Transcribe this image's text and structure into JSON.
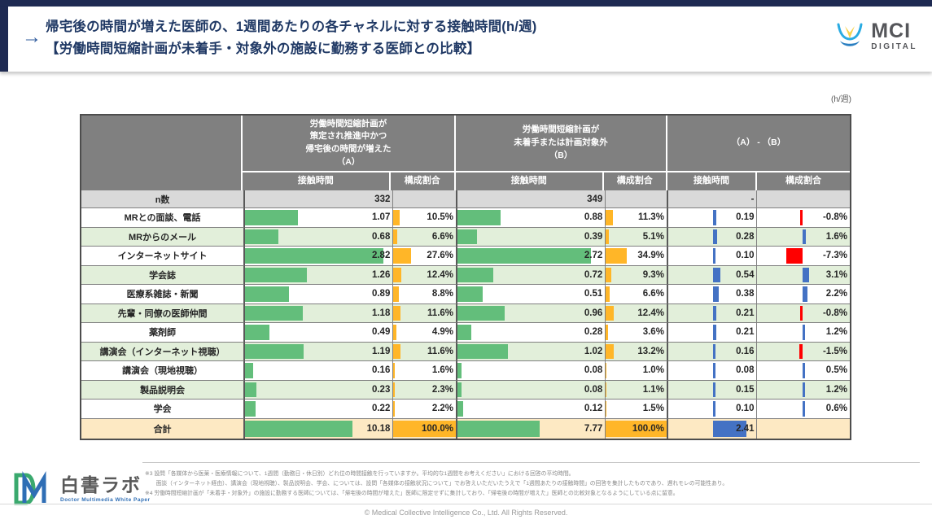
{
  "header": {
    "arrow": "→",
    "title_line1": "帰宅後の時間が増えた医師の、1週間あたりの各チャネルに対する接触時間(h/週)",
    "title_line2": "【労働時間短縮計画が未着手・対象外の施設に勤務する医師との比較】",
    "logo_text": "MCI",
    "logo_subtext": "DIGITAL"
  },
  "table": {
    "unit_label": "(h/週)",
    "col_groups": [
      {
        "label": "労働時間短縮計画が\n策定され推進中かつ\n帰宅後の時間が増えた\n（A）"
      },
      {
        "label": "労働時間短縮計画が\n未着手または計画対象外\n（B）"
      },
      {
        "label": "（A） - （B）"
      }
    ],
    "sub_headers": [
      "接触時間",
      "構成割合"
    ],
    "n_row": {
      "label": "n数",
      "a_n": "332",
      "b_n": "349",
      "diff_n": "-"
    },
    "rows": [
      {
        "label": "MRとの面談、電話",
        "a": {
          "t": "1.07",
          "tv": 1.07,
          "s": "10.5%",
          "sv": 10.5
        },
        "b": {
          "t": "0.88",
          "tv": 0.88,
          "s": "11.3%",
          "sv": 11.3
        },
        "d": {
          "t": "0.19",
          "tv": 0.19,
          "s": "-0.8%",
          "sv": -0.8
        }
      },
      {
        "label": "MRからのメール",
        "a": {
          "t": "0.68",
          "tv": 0.68,
          "s": "6.6%",
          "sv": 6.6
        },
        "b": {
          "t": "0.39",
          "tv": 0.39,
          "s": "5.1%",
          "sv": 5.1
        },
        "d": {
          "t": "0.28",
          "tv": 0.28,
          "s": "1.6%",
          "sv": 1.6
        }
      },
      {
        "label": "インターネットサイト",
        "a": {
          "t": "2.82",
          "tv": 2.82,
          "s": "27.6%",
          "sv": 27.6
        },
        "b": {
          "t": "2.72",
          "tv": 2.72,
          "s": "34.9%",
          "sv": 34.9
        },
        "d": {
          "t": "0.10",
          "tv": 0.1,
          "s": "-7.3%",
          "sv": -7.3
        }
      },
      {
        "label": "学会誌",
        "a": {
          "t": "1.26",
          "tv": 1.26,
          "s": "12.4%",
          "sv": 12.4
        },
        "b": {
          "t": "0.72",
          "tv": 0.72,
          "s": "9.3%",
          "sv": 9.3
        },
        "d": {
          "t": "0.54",
          "tv": 0.54,
          "s": "3.1%",
          "sv": 3.1
        }
      },
      {
        "label": "医療系雑誌・新聞",
        "a": {
          "t": "0.89",
          "tv": 0.89,
          "s": "8.8%",
          "sv": 8.8
        },
        "b": {
          "t": "0.51",
          "tv": 0.51,
          "s": "6.6%",
          "sv": 6.6
        },
        "d": {
          "t": "0.38",
          "tv": 0.38,
          "s": "2.2%",
          "sv": 2.2
        }
      },
      {
        "label": "先輩・同僚の医師仲間",
        "a": {
          "t": "1.18",
          "tv": 1.18,
          "s": "11.6%",
          "sv": 11.6
        },
        "b": {
          "t": "0.96",
          "tv": 0.96,
          "s": "12.4%",
          "sv": 12.4
        },
        "d": {
          "t": "0.21",
          "tv": 0.21,
          "s": "-0.8%",
          "sv": -0.8
        }
      },
      {
        "label": "薬剤師",
        "a": {
          "t": "0.49",
          "tv": 0.49,
          "s": "4.9%",
          "sv": 4.9
        },
        "b": {
          "t": "0.28",
          "tv": 0.28,
          "s": "3.6%",
          "sv": 3.6
        },
        "d": {
          "t": "0.21",
          "tv": 0.21,
          "s": "1.2%",
          "sv": 1.2
        }
      },
      {
        "label": "講演会（インターネット視聴）",
        "a": {
          "t": "1.19",
          "tv": 1.19,
          "s": "11.6%",
          "sv": 11.6
        },
        "b": {
          "t": "1.02",
          "tv": 1.02,
          "s": "13.2%",
          "sv": 13.2
        },
        "d": {
          "t": "0.16",
          "tv": 0.16,
          "s": "-1.5%",
          "sv": -1.5
        }
      },
      {
        "label": "講演会（現地視聴）",
        "a": {
          "t": "0.16",
          "tv": 0.16,
          "s": "1.6%",
          "sv": 1.6
        },
        "b": {
          "t": "0.08",
          "tv": 0.08,
          "s": "1.0%",
          "sv": 1.0
        },
        "d": {
          "t": "0.08",
          "tv": 0.08,
          "s": "0.5%",
          "sv": 0.5
        }
      },
      {
        "label": "製品説明会",
        "a": {
          "t": "0.23",
          "tv": 0.23,
          "s": "2.3%",
          "sv": 2.3
        },
        "b": {
          "t": "0.08",
          "tv": 0.08,
          "s": "1.1%",
          "sv": 1.1
        },
        "d": {
          "t": "0.15",
          "tv": 0.15,
          "s": "1.2%",
          "sv": 1.2
        }
      },
      {
        "label": "学会",
        "a": {
          "t": "0.22",
          "tv": 0.22,
          "s": "2.2%",
          "sv": 2.2
        },
        "b": {
          "t": "0.12",
          "tv": 0.12,
          "s": "1.5%",
          "sv": 1.5
        },
        "d": {
          "t": "0.10",
          "tv": 0.1,
          "s": "0.6%",
          "sv": 0.6
        }
      }
    ],
    "total_row": {
      "label": "合計",
      "a": {
        "t": "10.18",
        "tv": 10.18,
        "s": "100.0%",
        "sv": 100
      },
      "b": {
        "t": "7.77",
        "tv": 7.77,
        "s": "100.0%",
        "sv": 100
      },
      "d": {
        "t": "2.41",
        "tv": 2.41,
        "s": "",
        "sv": null
      }
    },
    "colors": {
      "header_gray": "#808080",
      "n_row_gray": "#d9d9d9",
      "alt_green": "#e2efda",
      "total_tan": "#fde9c3",
      "bar_green": "#63be7b",
      "bar_orange": "#ffb628",
      "bar_blue": "#4472c4",
      "bar_red": "#ff0000"
    }
  },
  "footer": {
    "notes": [
      "※3 設問「各媒体から医薬・医療情報について、1週間（勤務日・休日別）どれ位の時間接触を行っていますか。平均的な1週間をお考えください」における回答の平均時間。",
      "　　面談（インターネット経由）、講演会（現地視聴）、製品説明会、学会、については、設問「各媒体の接触状況について」でお答えいただいたうえで「1週間あたりの接触時間」の回答を集計したものであり、遅れモレの可能性あり。",
      "※4 労働時間短縮計画が「未着手・対象外」の施設に勤務する医師については、「帰宅後の時間が増えた」医師に限定せずに集計しており、「帰宅後の時間が増えた」医師との比較対象となるようにしている点に留意。"
    ],
    "copyright": "© Medical Collective Intelligence Co., Ltd.  All Rights Reserved.",
    "hakusho_logo_jp": "白書ラボ",
    "hakusho_logo_en": "Doctor Multimedia White Paper"
  }
}
